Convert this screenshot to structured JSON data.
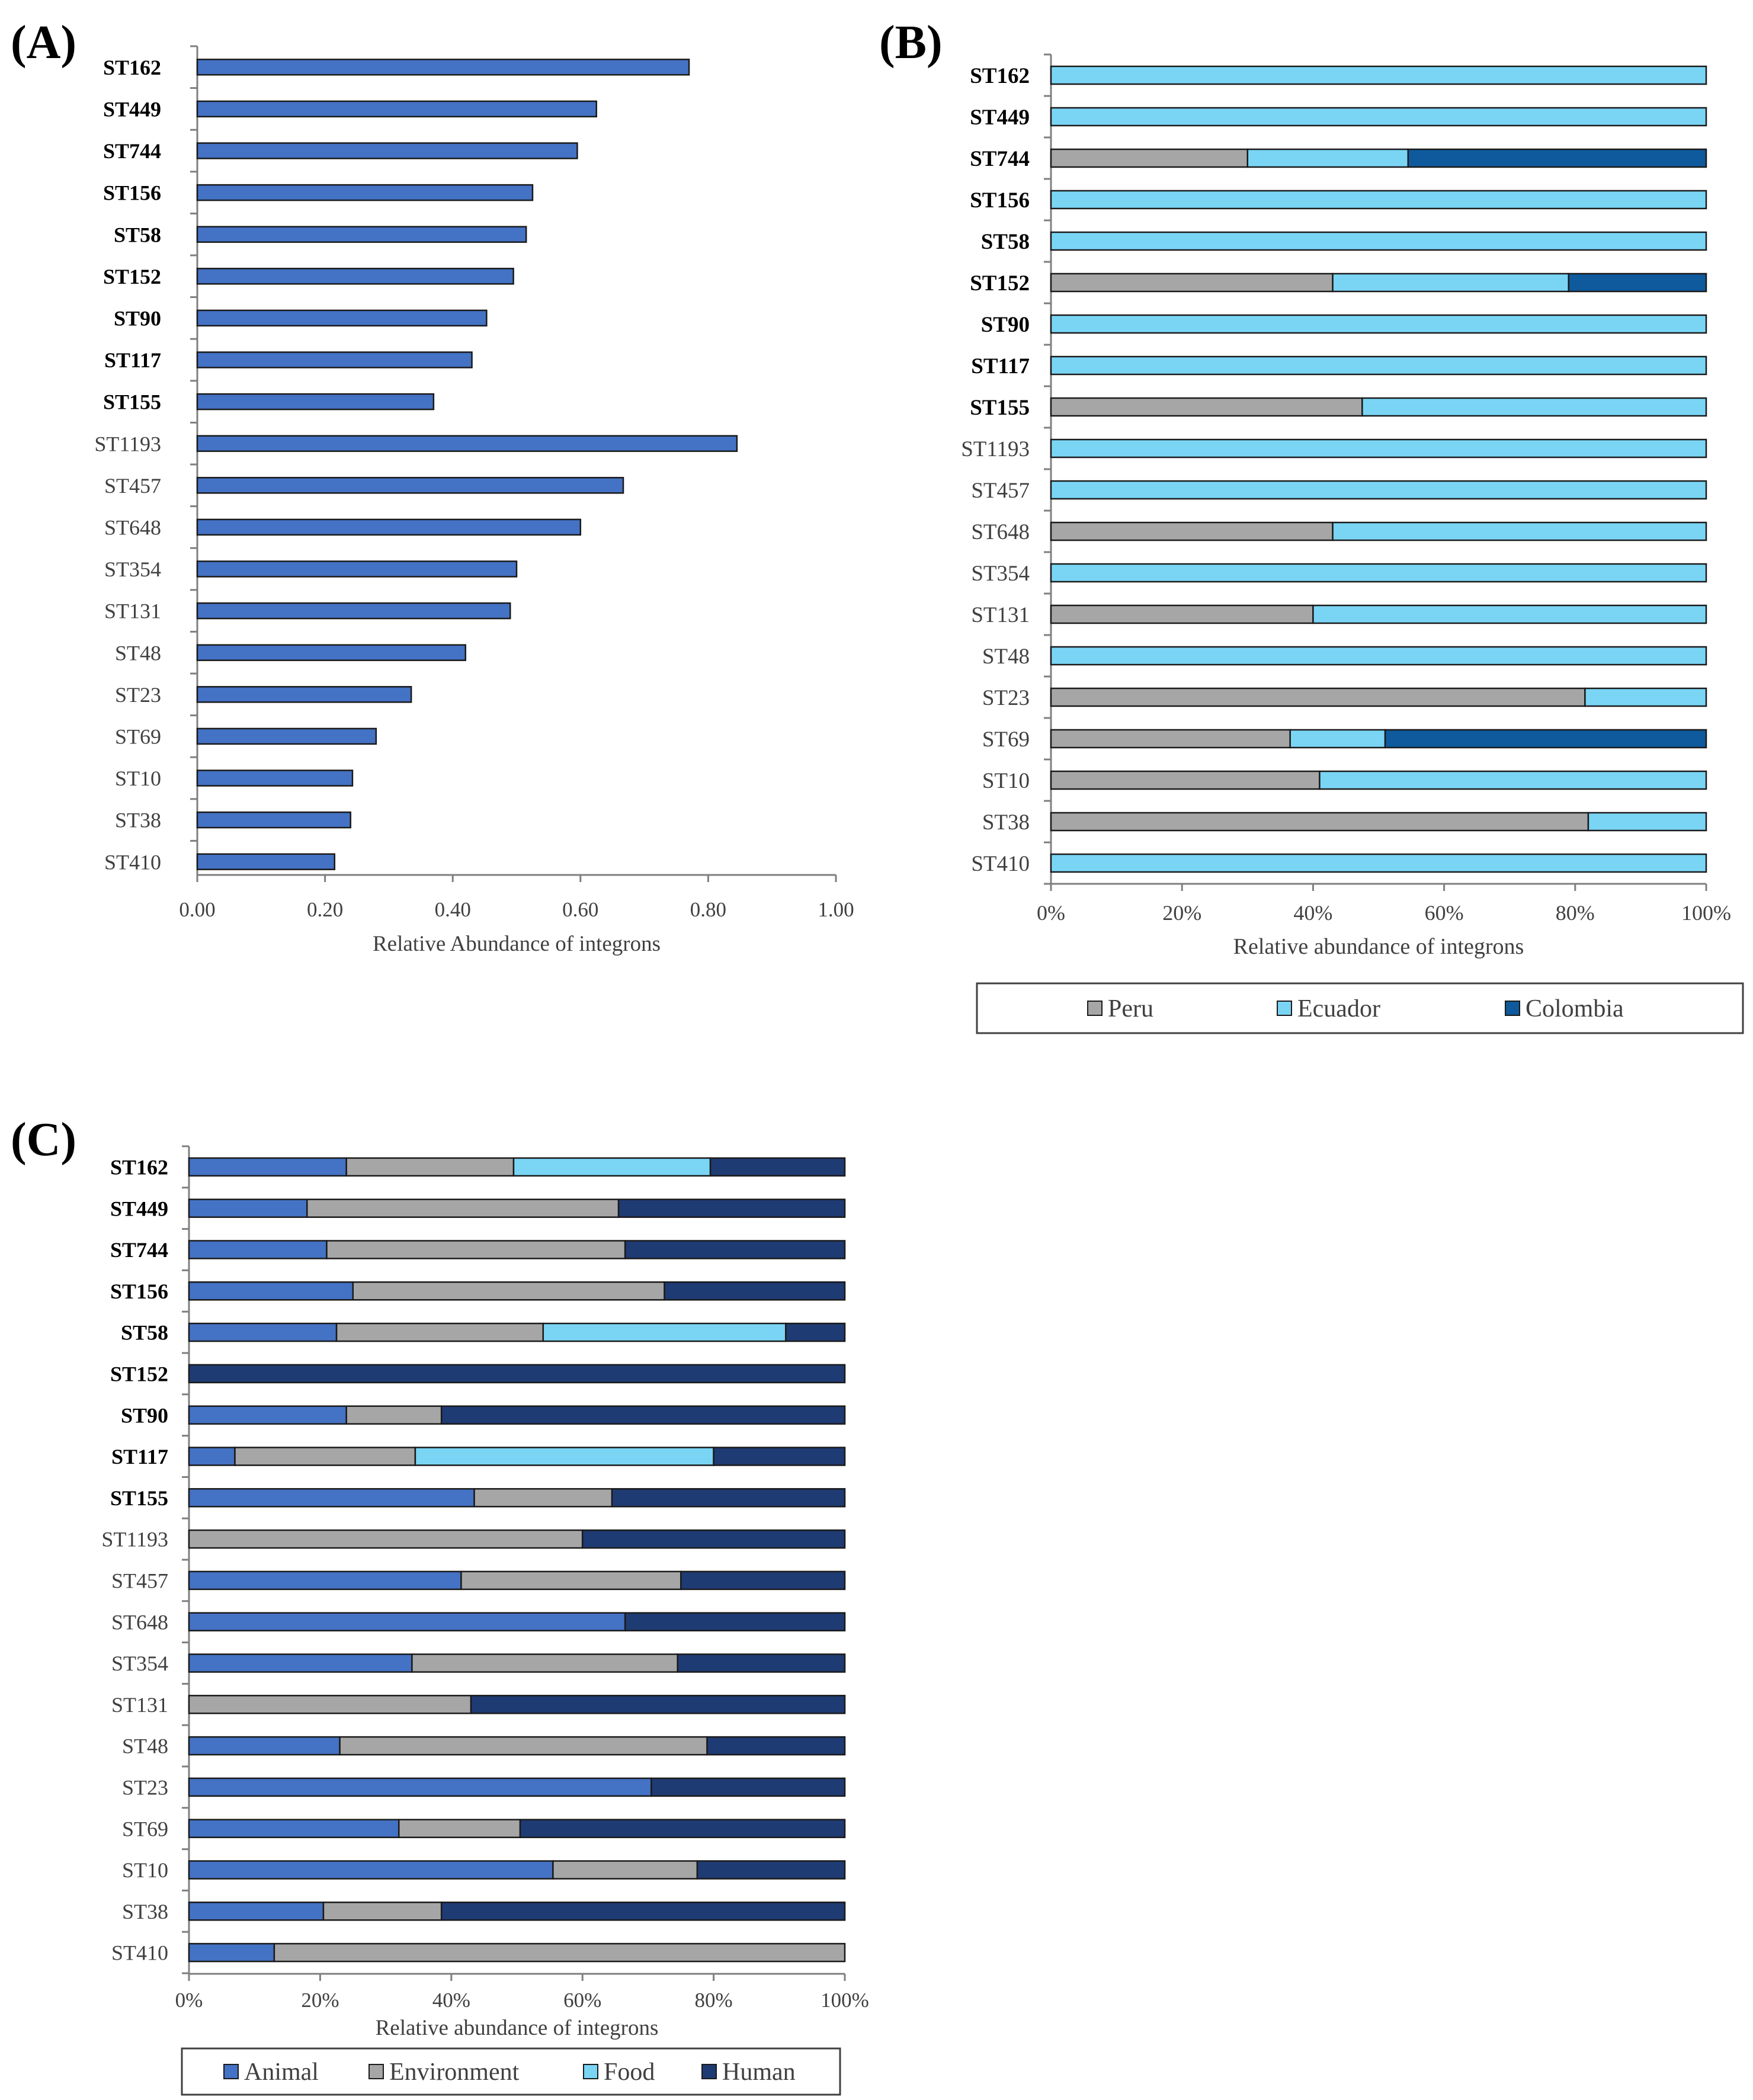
{
  "chart_data": [
    {
      "panel": "(A)",
      "type": "bar",
      "orientation": "horizontal",
      "categories": [
        "ST162",
        "ST449",
        "ST744",
        "ST156",
        "ST58",
        "ST152",
        "ST90",
        "ST117",
        "ST155",
        "ST1193",
        "ST457",
        "ST648",
        "ST354",
        "ST131",
        "ST48",
        "ST23",
        "ST69",
        "ST10",
        "ST38",
        "ST410"
      ],
      "bold_categories": [
        "ST162",
        "ST449",
        "ST744",
        "ST156",
        "ST58",
        "ST152",
        "ST90",
        "ST117",
        "ST155"
      ],
      "values": [
        0.77,
        0.625,
        0.595,
        0.525,
        0.515,
        0.495,
        0.453,
        0.43,
        0.37,
        0.845,
        0.667,
        0.6,
        0.5,
        0.49,
        0.42,
        0.335,
        0.28,
        0.243,
        0.24,
        0.215
      ],
      "xlim": [
        0,
        1
      ],
      "xticks": [
        "0.00",
        "0.20",
        "0.40",
        "0.60",
        "0.80",
        "1.00"
      ],
      "xlabel": "Relative Abundance of integrons",
      "color": "#4472C4"
    },
    {
      "panel": "(B)",
      "type": "bar",
      "orientation": "horizontal",
      "stacked": "percent",
      "categories": [
        "ST162",
        "ST449",
        "ST744",
        "ST156",
        "ST58",
        "ST152",
        "ST90",
        "ST117",
        "ST155",
        "ST1193",
        "ST457",
        "ST648",
        "ST354",
        "ST131",
        "ST48",
        "ST23",
        "ST69",
        "ST10",
        "ST38",
        "ST410"
      ],
      "bold_categories": [
        "ST162",
        "ST449",
        "ST744",
        "ST156",
        "ST58",
        "ST152",
        "ST90",
        "ST117",
        "ST155"
      ],
      "series": [
        {
          "name": "Peru",
          "color": "#A6A6A6",
          "values": [
            0,
            0,
            30,
            0,
            0,
            43,
            0,
            0,
            47.5,
            0,
            0,
            43,
            0,
            40,
            0,
            81.5,
            36.5,
            41,
            82,
            0
          ]
        },
        {
          "name": "Ecuador",
          "color": "#7AD5F5",
          "values": [
            100,
            100,
            24.5,
            100,
            100,
            36,
            100,
            100,
            52.5,
            100,
            100,
            57,
            100,
            60,
            100,
            18.5,
            14.5,
            59,
            18,
            100
          ]
        },
        {
          "name": "Colombia",
          "color": "#0E5A9C",
          "values": [
            0,
            0,
            45.5,
            0,
            0,
            21,
            0,
            0,
            0,
            0,
            0,
            0,
            0,
            0,
            0,
            0,
            49,
            0,
            0,
            0
          ]
        }
      ],
      "xticks": [
        "0%",
        "20%",
        "40%",
        "60%",
        "80%",
        "100%"
      ],
      "xlabel": "Relative abundance of integrons"
    },
    {
      "panel": "(C)",
      "type": "bar",
      "orientation": "horizontal",
      "stacked": "percent",
      "categories": [
        "ST162",
        "ST449",
        "ST744",
        "ST156",
        "ST58",
        "ST152",
        "ST90",
        "ST117",
        "ST155",
        "ST1193",
        "ST457",
        "ST648",
        "ST354",
        "ST131",
        "ST48",
        "ST23",
        "ST69",
        "ST10",
        "ST38",
        "ST410"
      ],
      "bold_categories": [
        "ST162",
        "ST449",
        "ST744",
        "ST156",
        "ST58",
        "ST152",
        "ST90",
        "ST117",
        "ST155"
      ],
      "series": [
        {
          "name": "Animal",
          "color": "#4472C4",
          "values": [
            24,
            18,
            21,
            25,
            22.5,
            0,
            24,
            7,
            43.5,
            0,
            41.5,
            66.5,
            34,
            0,
            23,
            70.5,
            32,
            55.5,
            20.5,
            13
          ]
        },
        {
          "name": "Environment",
          "color": "#A6A6A6",
          "values": [
            25.5,
            47.5,
            45.5,
            47.5,
            31.5,
            0,
            14.5,
            27.5,
            21,
            60,
            33.5,
            0,
            40.5,
            43,
            56,
            0,
            18.5,
            22,
            18,
            87
          ]
        },
        {
          "name": "Food",
          "color": "#7AD5F5",
          "values": [
            30,
            0,
            0,
            0,
            37,
            0,
            0,
            45.5,
            0,
            0,
            0,
            0,
            0,
            0,
            0,
            0,
            0,
            0,
            0,
            0
          ]
        },
        {
          "name": "Human",
          "color": "#1F3B73",
          "values": [
            20.5,
            34.5,
            33.5,
            27.5,
            9,
            100,
            61.5,
            20,
            35.5,
            40,
            25,
            33.5,
            25.5,
            57,
            21,
            29.5,
            49.5,
            22.5,
            61.5,
            0
          ]
        }
      ],
      "xticks": [
        "0%",
        "20%",
        "40%",
        "60%",
        "80%",
        "100%"
      ],
      "xlabel": "Relative abundance of integrons"
    }
  ]
}
